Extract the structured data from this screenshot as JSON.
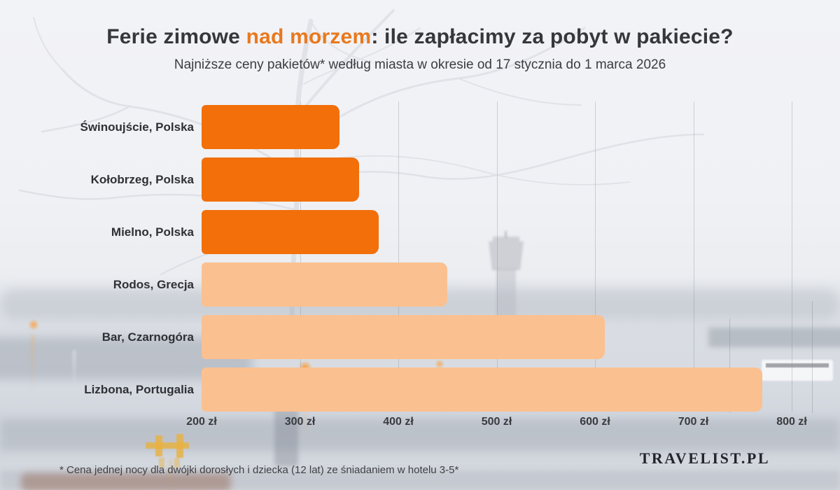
{
  "header": {
    "title_part1": "Ferie zimowe ",
    "title_accent": "nad morzem",
    "title_part3": ": ile zapłacimy za pobyt w pakiecie?",
    "subtitle": "Najniższe ceny pakietów* według miasta w okresie od 17 stycznia do 1 marca 2026"
  },
  "chart_data": {
    "type": "bar",
    "orientation": "horizontal",
    "title": "Ferie zimowe nad morzem: ile zapłacimy za pobyt w pakiecie?",
    "categories": [
      "Świnoujście, Polska",
      "Kołobrzeg, Polska",
      "Mielno, Polska",
      "Rodos, Grecja",
      "Bar, Czarnogóra",
      "Lizbona, Portugalia"
    ],
    "values": [
      340,
      360,
      380,
      450,
      610,
      770
    ],
    "unit": "zł",
    "xlim": [
      200,
      800
    ],
    "x_ticks": [
      200,
      300,
      400,
      500,
      600,
      700,
      800
    ],
    "x_tick_labels": [
      "200 zł",
      "300 zł",
      "400 zł",
      "500 zł",
      "600 zł",
      "700 zł",
      "800 zł"
    ],
    "grid": true,
    "legend": false,
    "bar_shades": [
      "dark",
      "dark",
      "dark",
      "light",
      "light",
      "light"
    ],
    "colors": {
      "bar_dark": "#f26f0a",
      "bar_light": "#fbc08f",
      "title_accent": "#e8791e"
    }
  },
  "footer": {
    "note": "* Cena jednej nocy dla dwójki dorosłych i dziecka (12 lat) ze śniadaniem w hotelu 3-5*",
    "logo": "TRAVELIST.PL"
  }
}
